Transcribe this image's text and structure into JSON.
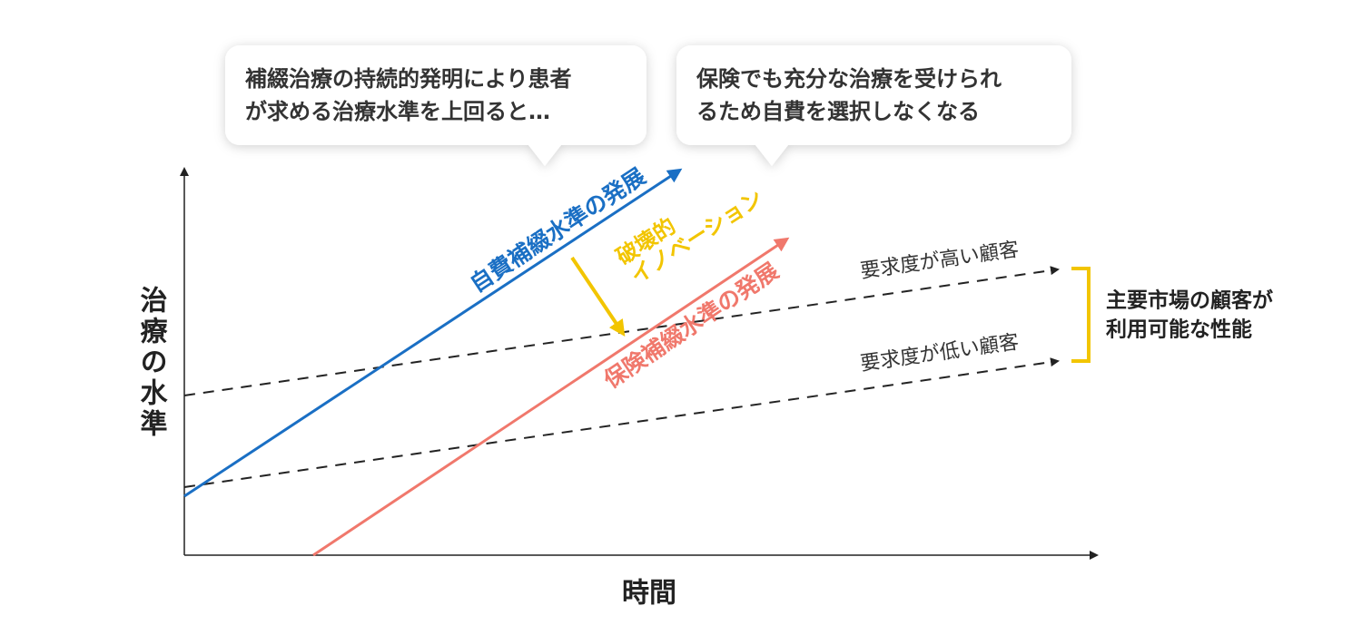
{
  "callouts": [
    {
      "lines": [
        "補綴治療の持続的発明により患者",
        "が求める治療水準を上回ると…"
      ]
    },
    {
      "lines": [
        "保険でも充分な治療を受けられ",
        "るため自費を選択しなくなる"
      ]
    }
  ],
  "axes": {
    "y_label": "治療の水準",
    "x_label": "時間"
  },
  "trajectories": {
    "private": "自費補綴水準の発展",
    "insurance": "保険補綴水準の発展"
  },
  "disruption": {
    "lines": [
      "破壊的",
      "イノベーション"
    ]
  },
  "customers": {
    "high": "要求度が高い顧客",
    "low": "要求度が低い顧客"
  },
  "bracket": {
    "lines": [
      "主要市場の顧客が",
      "利用可能な性能"
    ]
  }
}
